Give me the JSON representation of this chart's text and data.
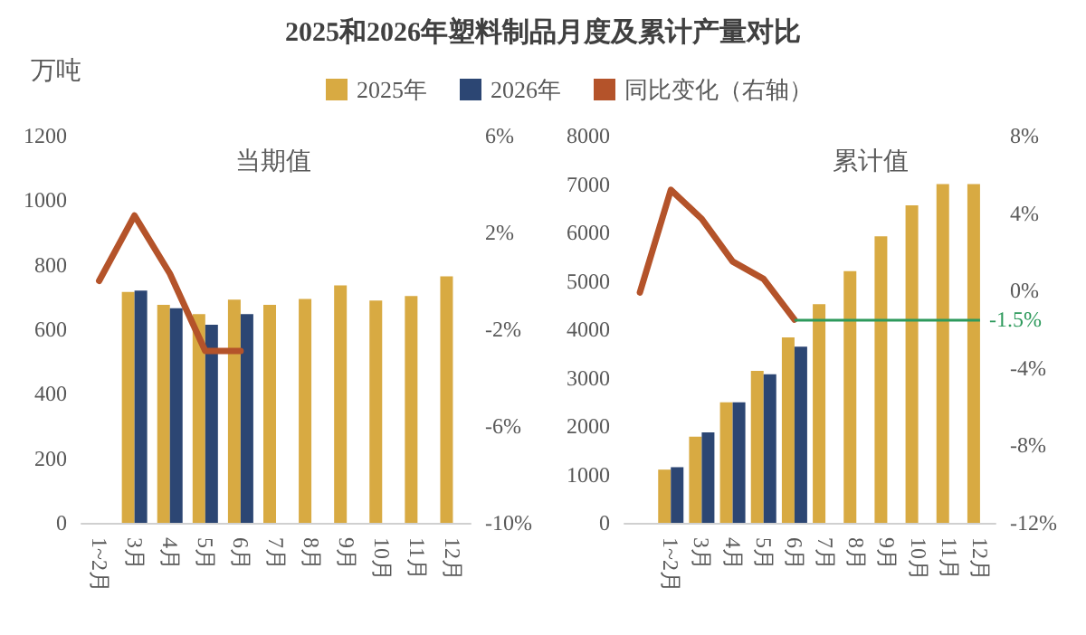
{
  "chart_data": [
    {
      "type": "bar",
      "title": "2025和2026年塑料制品月度及累计产量对比",
      "subtitle": "当期值",
      "ylabel": "万吨",
      "categories": [
        "1~2月",
        "3月",
        "4月",
        "5月",
        "6月",
        "7月",
        "8月",
        "9月",
        "10月",
        "11月",
        "12月"
      ],
      "series": [
        {
          "name": "2025年",
          "color": "#d8aa42",
          "values": [
            null,
            716,
            676,
            647,
            692,
            676,
            694,
            736,
            689,
            703,
            764
          ]
        },
        {
          "name": "2026年",
          "color": "#2c4673",
          "values": [
            null,
            720,
            665,
            614,
            647,
            null,
            null,
            null,
            null,
            null,
            null
          ]
        },
        {
          "name": "同比变化（右轴）",
          "type": "line",
          "axis": "y2",
          "color": "#b4532a",
          "values": [
            0.0,
            2.7,
            0.3,
            -2.9,
            -2.9,
            null,
            null,
            null,
            null,
            null,
            null
          ]
        }
      ],
      "ylim": [
        0,
        1200
      ],
      "yticks": [
        0,
        200,
        400,
        600,
        800,
        1000,
        1200
      ],
      "y2lim": [
        -10,
        6
      ],
      "y2ticks": [
        {
          "value": -10,
          "label": "-10%"
        },
        {
          "value": -6,
          "label": "-6%"
        },
        {
          "value": -2,
          "label": "-2%"
        },
        {
          "value": 2,
          "label": "2%"
        },
        {
          "value": 6,
          "label": "6%"
        }
      ],
      "grid": false,
      "legend": "top",
      "marker": "none",
      "line_style": "solid"
    },
    {
      "type": "bar",
      "subtitle": "累计值",
      "categories": [
        null,
        "1~2月",
        "3月",
        "4月",
        "5月",
        "6月",
        "7月",
        "8月",
        "9月",
        "10月",
        "11月",
        "12月"
      ],
      "series": [
        {
          "color": "#d8aa42",
          "values": [
            null,
            1100,
            1780,
            2490,
            3140,
            3830,
            4520,
            5200,
            5920,
            6560,
            7000,
            7000
          ]
        },
        {
          "color": "#2c4673",
          "values": [
            null,
            1150,
            1870,
            2490,
            3070,
            3640,
            null,
            null,
            null,
            null,
            null,
            null
          ]
        },
        {
          "type": "line",
          "axis": "y2",
          "color": "#b4532a",
          "values": [
            -0.1,
            5.2,
            3.7,
            1.5,
            0.6,
            -1.5,
            null,
            null,
            null,
            null,
            null,
            null
          ]
        }
      ],
      "ylim": [
        0,
        8000
      ],
      "yticks": [
        0,
        1000,
        2000,
        3000,
        4000,
        5000,
        6000,
        7000,
        8000
      ],
      "y2lim": [
        -12,
        8
      ],
      "y2ticks": [
        {
          "value": -12,
          "label": "-12%"
        },
        {
          "value": -8,
          "label": "-8%"
        },
        {
          "value": -4,
          "label": "-4%"
        },
        {
          "value": 0,
          "label": "0%"
        },
        {
          "value": 4,
          "label": "4%"
        },
        {
          "value": 8,
          "label": "8%"
        }
      ],
      "ref_lines": [
        {
          "axis": "y2",
          "value": -1.5,
          "label": "-1.5%",
          "color": "#2e9a5c"
        }
      ],
      "grid": false,
      "legend": false,
      "marker": "none",
      "line_style": "solid"
    }
  ]
}
